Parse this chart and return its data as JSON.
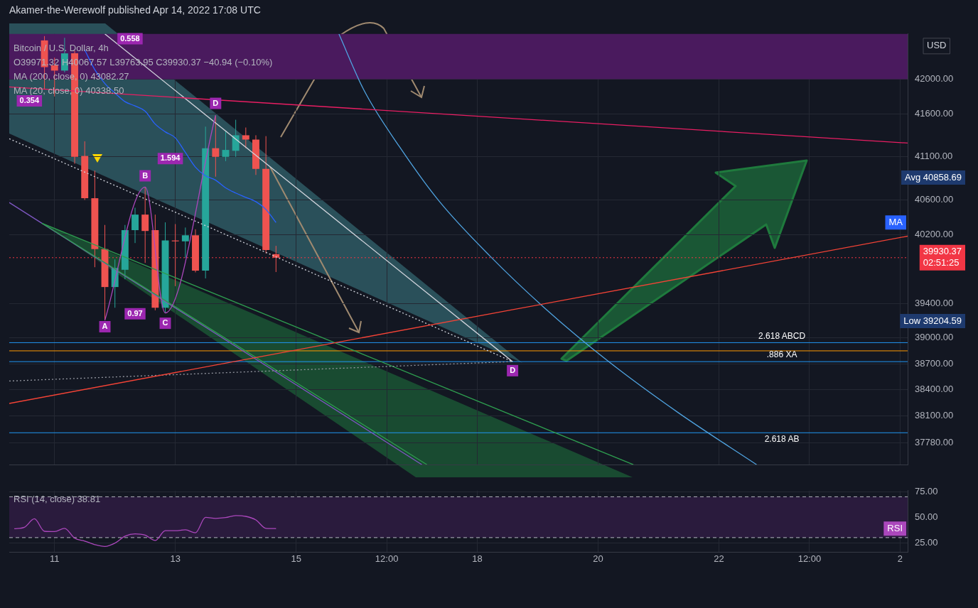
{
  "chart_data": [
    {
      "type": "candlestick",
      "title": "Akamer-the-Werewolf published Apr 14, 2022 17:08 UTC",
      "ylabel": "USD",
      "subtitle": "Bitcoin / U.S. Dollar, 4h\nO39971.32 H40067.57 L39763.95 C39930.37 −40.94 (−0.10%)\nMA (200, close, 0) 43082.27\nMA (20, close, 0) 40338.50",
      "x": [
        "2022-04-10T20:00",
        "2022-04-11T00:00",
        "2022-04-11T04:00",
        "2022-04-11T08:00",
        "2022-04-11T12:00",
        "2022-04-11T16:00",
        "2022-04-11T20:00",
        "2022-04-12T00:00",
        "2022-04-12T04:00",
        "2022-04-12T08:00",
        "2022-04-12T12:00",
        "2022-04-12T16:00",
        "2022-04-12T20:00",
        "2022-04-13T00:00",
        "2022-04-13T04:00",
        "2022-04-13T08:00",
        "2022-04-13T12:00",
        "2022-04-13T16:00",
        "2022-04-13T20:00",
        "2022-04-14T00:00",
        "2022-04-14T04:00",
        "2022-04-14T08:00",
        "2022-04-14T12:00",
        "2022-04-14T16:00"
      ],
      "ohlc": [
        [
          42450,
          42500,
          41880,
          42140
        ],
        [
          42160,
          42250,
          41800,
          42100
        ],
        [
          42100,
          42480,
          42080,
          42300
        ],
        [
          42300,
          42330,
          41020,
          41100
        ],
        [
          41110,
          41280,
          40600,
          40620
        ],
        [
          40620,
          40940,
          39820,
          40030
        ],
        [
          40030,
          40310,
          39204.59,
          39590
        ],
        [
          39590,
          39910,
          39350,
          39810
        ],
        [
          39790,
          40310,
          39680,
          40250
        ],
        [
          40250,
          40510,
          40100,
          40430
        ],
        [
          40430,
          40750,
          39870,
          40240
        ],
        [
          40250,
          40430,
          39320,
          39350
        ],
        [
          39350,
          40340,
          39290,
          40130
        ],
        [
          40130,
          40320,
          39600,
          40120
        ],
        [
          40120,
          40280,
          39930,
          40190
        ],
        [
          40190,
          40260,
          39760,
          39780
        ],
        [
          39780,
          41450,
          39690,
          41200
        ],
        [
          41200,
          41580,
          40870,
          41100
        ],
        [
          41100,
          41400,
          41050,
          41180
        ],
        [
          41170,
          41530,
          41100,
          41350
        ],
        [
          41350,
          41440,
          41200,
          41300
        ],
        [
          41300,
          41350,
          40890,
          40960
        ],
        [
          40960,
          41340,
          39980,
          40020
        ],
        [
          39971.32,
          40067.57,
          39763.95,
          39930.37
        ]
      ],
      "colors": [
        "#ef5350",
        "#ef5350",
        "#26a69a",
        "#ef5350",
        "#ef5350",
        "#ef5350",
        "#ef5350",
        "#26a69a",
        "#26a69a",
        "#26a69a",
        "#ef5350",
        "#ef5350",
        "#26a69a",
        "#ef5350",
        "#26a69a",
        "#ef5350",
        "#26a69a",
        "#ef5350",
        "#26a69a",
        "#26a69a",
        "#ef5350",
        "#ef5350",
        "#ef5350",
        "#ef5350"
      ],
      "series": [
        {
          "type": "line",
          "name": "MA",
          "color": "#2962ff",
          "x": [
            "2022-04-11T12:00",
            "2022-04-11T16:00",
            "2022-04-11T20:00",
            "2022-04-12T00:00",
            "2022-04-12T04:00",
            "2022-04-12T08:00",
            "2022-04-12T12:00",
            "2022-04-12T16:00",
            "2022-04-12T20:00",
            "2022-04-13T00:00",
            "2022-04-13T04:00",
            "2022-04-13T08:00",
            "2022-04-13T12:00",
            "2022-04-13T16:00",
            "2022-04-13T20:00",
            "2022-04-14T00:00",
            "2022-04-14T04:00",
            "2022-04-14T08:00",
            "2022-04-14T12:00",
            "2022-04-14T16:00"
          ],
          "values": [
            42340,
            42110,
            41950,
            41840,
            41740,
            41690,
            41630,
            41480,
            41390,
            41320,
            41150,
            40980,
            40880,
            40830,
            40740,
            40680,
            40630,
            40580,
            40490,
            40338.5
          ]
        },
        {
          "type": "line",
          "color": "#ab47bc",
          "x": [
            "2022-04-11T20:00",
            "2022-04-12T12:00",
            "2022-04-12T20:00",
            "2022-04-13T16:00"
          ],
          "values": [
            39204.59,
            40750,
            39290,
            41580
          ]
        },
        {
          "type": "line",
          "color": "#e91e63",
          "x": [
            "2022-04-10T06:00",
            "2022-04-25T03:00"
          ],
          "values": [
            41910,
            41260
          ]
        },
        {
          "type": "line",
          "color": "#f44336",
          "x": [
            "2022-04-10T06:00",
            "2022-04-25T03:00"
          ],
          "values": [
            38240,
            40180
          ]
        },
        {
          "type": "line",
          "color": "#d1d4dc",
          "x": [
            "2022-04-11T20:00",
            "2022-04-18T14:00"
          ],
          "values": [
            42525,
            38725
          ]
        },
        {
          "type": "line",
          "color": "#d1d4dc",
          "line_style": "dotted",
          "x": [
            "2022-04-10T06:00",
            "2022-04-18T14:00"
          ],
          "values": [
            41310,
            38725
          ]
        },
        {
          "type": "line",
          "color": "#9598a1",
          "line_style": "dotted",
          "x": [
            "2022-04-10T06:00",
            "2022-04-18T14:00"
          ],
          "values": [
            38500,
            38725
          ]
        },
        {
          "type": "line",
          "color": "#2e9d4f",
          "x": [
            "2022-04-10T19:00",
            "2022-04-20T14:00"
          ],
          "values": [
            40330,
            37530
          ]
        },
        {
          "type": "line",
          "color": "#2e9d4f",
          "x": [
            "2022-04-10T19:00",
            "2022-04-17T04:00"
          ],
          "values": [
            40330,
            37530
          ]
        },
        {
          "type": "line",
          "color": "#7e57c2",
          "x": [
            "2022-04-10T06:00",
            "2022-04-17T02:00"
          ],
          "values": [
            40570,
            37530
          ]
        },
        {
          "type": "line",
          "color": "#4fa3e0",
          "x": [
            "2022-04-15T17:00",
            "2022-04-16T03:00",
            "2022-04-16T17:00",
            "2022-04-17T09:00",
            "2022-04-18T05:00",
            "2022-04-19T03:00",
            "2022-04-20T04:00",
            "2022-04-21T08:00",
            "2022-04-22T15:00"
          ],
          "values": [
            42525,
            41870,
            41220,
            40580,
            39950,
            39340,
            38730,
            38130,
            37530
          ]
        }
      ],
      "xlim": [
        "2022-04-10T06:00",
        "2022-04-25T03:00"
      ],
      "xticks": [
        {
          "value": "2022-04-11",
          "label": null
        },
        {
          "value": "2022-04-13",
          "label": null
        },
        {
          "value": "2022-04-15",
          "label": null
        },
        {
          "value": "2022-04-16T12:00",
          "label": null
        },
        {
          "value": "2022-04-18",
          "label": null
        },
        {
          "value": "2022-04-20",
          "label": null
        },
        {
          "value": "2022-04-22",
          "label": null
        },
        {
          "value": "2022-04-23T12:00",
          "label": null
        },
        {
          "value": "2022-04-25",
          "label": null
        }
      ],
      "ylim": [
        37530,
        42525
      ],
      "yticks": [
        {
          "value": 37780,
          "label": "37780.00"
        },
        {
          "value": 38100,
          "label": "38100.00"
        },
        {
          "value": 38400,
          "label": "38400.00"
        },
        {
          "value": 38700,
          "label": "38700.00"
        },
        {
          "value": 39000,
          "label": "39000.00"
        },
        {
          "value": 39400,
          "label": "39400.00"
        },
        {
          "value": 40200,
          "label": "40200.00"
        },
        {
          "value": 40600,
          "label": "40600.00"
        },
        {
          "value": 41100,
          "label": "41100.00"
        },
        {
          "value": 41600,
          "label": "41600.00"
        },
        {
          "value": 42000,
          "label": "42000.00"
        }
      ],
      "tick_labels": "y",
      "grid": true,
      "bands": [
        {
          "axis": "y",
          "from": 42000,
          "to": 42525,
          "color": "#4a1a5e"
        }
      ],
      "ref_lines": [
        {
          "axis": "y",
          "value": 38945,
          "label": "2.618 ABCD",
          "color": "#2196f3"
        },
        {
          "axis": "y",
          "value": 38850,
          "color": "#ff9800"
        },
        {
          "axis": "y",
          "value": 38725,
          "label": ".886 XA",
          "color": "#2196f3"
        },
        {
          "axis": "y",
          "value": 37900,
          "label": "2.618 AB",
          "color": "#2196f3"
        },
        {
          "axis": "y",
          "value": 39930.37,
          "label": "39930.37\n02:51:25",
          "color": "#f23645",
          "line_style": "dotted"
        }
      ],
      "annotations": [
        {
          "text": "A",
          "x": "2022-04-11T20:00",
          "y": 39130
        },
        {
          "text": "B",
          "x": "2022-04-12T12:00",
          "y": 40880
        },
        {
          "text": "C",
          "x": "2022-04-12T20:00",
          "y": 39170
        },
        {
          "text": "D",
          "x": "2022-04-13T16:00",
          "y": 41720
        },
        {
          "text": "0.97",
          "x": "2022-04-12T08:00",
          "y": 39280
        },
        {
          "text": "1.594",
          "x": "2022-04-12T22:00",
          "y": 41080
        },
        {
          "text": "0.558",
          "x": "2022-04-12T06:00",
          "y": 42470
        },
        {
          "text": "0.354",
          "x": "2022-04-10T14:00",
          "y": 41750
        },
        {
          "text": "D",
          "x": "2022-04-18T14:00",
          "y": 38620
        },
        "Avg 40858.69",
        "Low 39204.59"
      ]
    },
    {
      "type": "line",
      "subtitle": "RSI (14, close) 38.81",
      "x": [
        "2022-04-10T08:00",
        "2022-04-10T12:00",
        "2022-04-10T16:00",
        "2022-04-10T20:00",
        "2022-04-11T00:00",
        "2022-04-11T04:00",
        "2022-04-11T08:00",
        "2022-04-11T12:00",
        "2022-04-11T16:00",
        "2022-04-11T20:00",
        "2022-04-12T00:00",
        "2022-04-12T04:00",
        "2022-04-12T08:00",
        "2022-04-12T12:00",
        "2022-04-12T16:00",
        "2022-04-12T20:00",
        "2022-04-13T00:00",
        "2022-04-13T04:00",
        "2022-04-13T08:00",
        "2022-04-13T12:00",
        "2022-04-13T16:00",
        "2022-04-13T20:00",
        "2022-04-14T00:00",
        "2022-04-14T04:00",
        "2022-04-14T08:00",
        "2022-04-14T12:00",
        "2022-04-14T16:00"
      ],
      "series": [
        {
          "name": "RSI",
          "color": "#ab47bc",
          "values": [
            38.7,
            40.1,
            48.4,
            36.2,
            35.9,
            39.1,
            29.5,
            26.6,
            23.1,
            21.3,
            24.6,
            31.4,
            33.7,
            32.4,
            27.2,
            36.8,
            36.8,
            37.6,
            34.7,
            49.8,
            48.8,
            49.6,
            51.6,
            50.8,
            47.3,
            39.1,
            38.81
          ]
        }
      ],
      "xlim": [
        "2022-04-10T06:00",
        "2022-04-25T03:00"
      ],
      "xticks": [
        {
          "value": "2022-04-11",
          "label": "11"
        },
        {
          "value": "2022-04-13",
          "label": "13"
        },
        {
          "value": "2022-04-15",
          "label": "15"
        },
        {
          "value": "2022-04-16T12:00",
          "label": "12:00"
        },
        {
          "value": "2022-04-18",
          "label": "18"
        },
        {
          "value": "2022-04-20",
          "label": "20"
        },
        {
          "value": "2022-04-22",
          "label": "22"
        },
        {
          "value": "2022-04-23T12:00",
          "label": "12:00"
        },
        {
          "value": "2022-04-25",
          "label": "2"
        }
      ],
      "ylim": [
        16,
        76
      ],
      "yticks": [
        {
          "value": 25,
          "label": "25.00"
        },
        {
          "value": 50,
          "label": "50.00"
        },
        {
          "value": 75,
          "label": "75.00"
        }
      ],
      "grid": true,
      "bands": [
        {
          "axis": "y",
          "from": 30,
          "to": 70,
          "color": "#2a1b3d"
        }
      ],
      "ref_lines": [
        {
          "axis": "y",
          "value": 70,
          "color": "#b2b5be",
          "line_style": "dashed"
        },
        {
          "axis": "y",
          "value": 30,
          "color": "#b2b5be",
          "line_style": "dashed"
        }
      ]
    }
  ]
}
